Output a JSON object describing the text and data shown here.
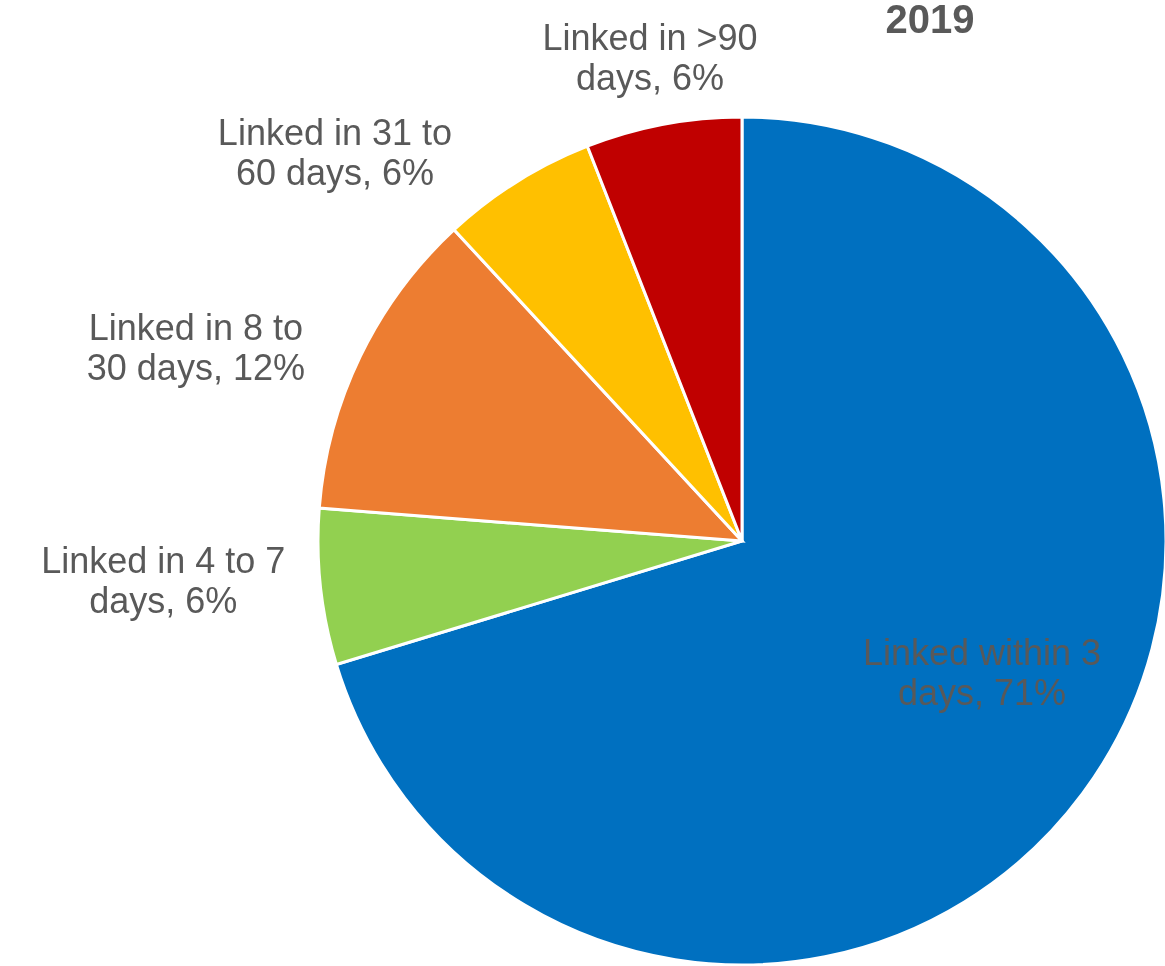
{
  "chart_data": {
    "type": "pie",
    "title": "2019",
    "categories": [
      "Linked within 3 days",
      "Linked in 4 to 7 days",
      "Linked in 8 to 30 days",
      "Linked in 31 to 60 days",
      "Linked in >90 days"
    ],
    "values": [
      71,
      6,
      12,
      6,
      6
    ],
    "colors": [
      "#0070c0",
      "#92d050",
      "#ed7d31",
      "#ffc000",
      "#c00000"
    ],
    "value_labels": [
      "71%",
      "6%",
      "12%",
      "6%",
      "6%"
    ]
  }
}
